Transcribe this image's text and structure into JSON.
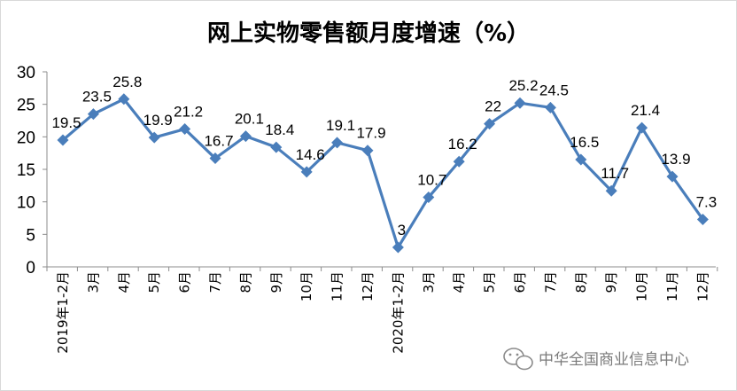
{
  "chart_data": {
    "type": "line",
    "title": "网上实物零售额月度增速（%）",
    "categories": [
      "2019年1-2月",
      "3月",
      "4月",
      "5月",
      "6月",
      "7月",
      "8月",
      "9月",
      "10月",
      "11月",
      "12月",
      "2020年1-2月",
      "3月",
      "4月",
      "5月",
      "6月",
      "7月",
      "8月",
      "9月",
      "10月",
      "11月",
      "12月"
    ],
    "series": [
      {
        "values": [
          19.5,
          23.5,
          25.8,
          19.9,
          21.2,
          16.7,
          20.1,
          18.4,
          14.6,
          19.1,
          17.9,
          3,
          10.7,
          16.2,
          22,
          25.2,
          24.5,
          16.5,
          11.7,
          21.4,
          13.9,
          7.3
        ]
      }
    ],
    "data_labels": [
      "19.5",
      "23.5",
      "25.8",
      "19.9",
      "21.2",
      "16.7",
      "20.1",
      "18.4",
      "14.6",
      "19.1",
      "17.9",
      "3",
      "10.7",
      "16.2",
      "22",
      "25.2",
      "24.5",
      "16.5",
      "11.7",
      "21.4",
      "13.9",
      "7.3"
    ],
    "yticks": [
      "0",
      "5",
      "10",
      "15",
      "20",
      "25",
      "30"
    ],
    "ylim": [
      0,
      30
    ],
    "xlabel": "",
    "ylabel": "",
    "grid": false,
    "legend": "none",
    "line_color": "#4a7ebb",
    "marker": "diamond"
  },
  "watermark": {
    "icon": "wechat-icon",
    "text": "中华全国商业信息中心"
  }
}
